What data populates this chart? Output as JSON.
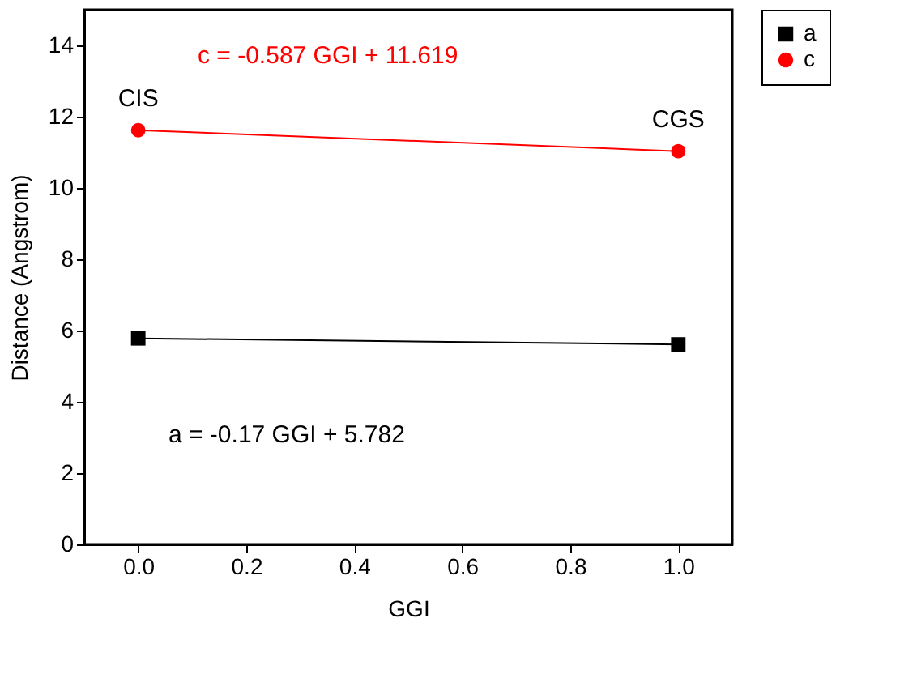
{
  "chart_data": {
    "type": "line",
    "xlabel": "GGI",
    "ylabel": "Distance (Angstrom)",
    "x": [
      0,
      1
    ],
    "series": [
      {
        "name": "a",
        "color": "#000000",
        "values": [
          5.78,
          5.61
        ],
        "marker": "square"
      },
      {
        "name": "c",
        "color": "#ff0000",
        "values": [
          11.62,
          11.03
        ],
        "marker": "circle"
      }
    ],
    "xlim": [
      -0.1,
      1.1
    ],
    "xticks": [
      {
        "value": 0,
        "label": "0.0"
      },
      0.2,
      0.4,
      0.6,
      0.8,
      {
        "value": 1,
        "label": "1.0"
      }
    ],
    "ylim": [
      0,
      15
    ],
    "yticks": [
      0,
      2,
      4,
      6,
      8,
      10,
      12,
      14
    ],
    "legend": "right",
    "line_style": "solid",
    "annotations": [
      "c = -0.587 GGI + 11.619",
      "a = -0.17 GGI + 5.782",
      {
        "text": "CIS",
        "x": 0,
        "y": 11.62
      },
      {
        "text": "CGS",
        "x": 1,
        "y": 11.03
      }
    ]
  }
}
